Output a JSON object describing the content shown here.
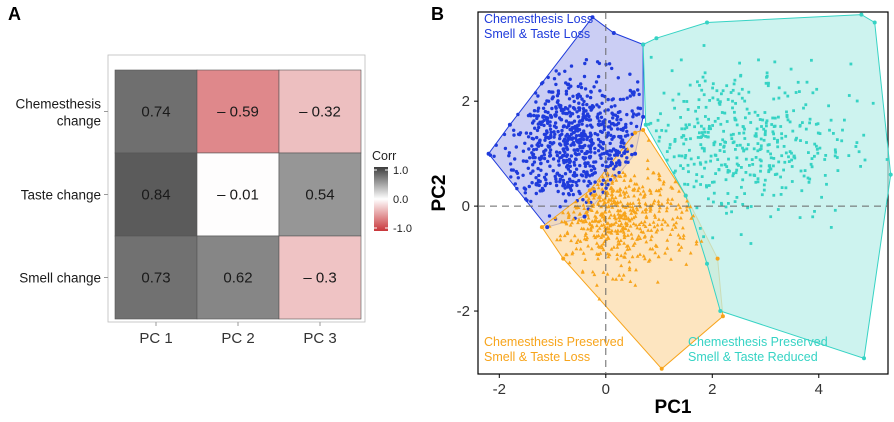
{
  "colors": {
    "loss": "#1f3bdb",
    "loss_fill": "#b9bef0",
    "reduced": "#36d3c4",
    "reduced_fill": "#bcefe9",
    "preserved_loss": "#f7a41b",
    "preserved_loss_fill": "#fcdcab",
    "heat_neg": "#c8363a",
    "heat_mid": "#ffffff",
    "heat_pos": "#3c3c3c"
  },
  "panel_a": {
    "letter": "A",
    "legend_title": "Corr",
    "legend_ticks": [
      "1.0",
      "0.0",
      "-1.0"
    ]
  },
  "panel_b": {
    "letter": "B"
  },
  "chart_data": [
    {
      "type": "heatmap",
      "rows": [
        "Chemesthesis change",
        "Taste change",
        "Smell change"
      ],
      "row_label_lines": [
        [
          "Chemesthesis",
          "change"
        ],
        [
          "Taste change"
        ],
        [
          "Smell change"
        ]
      ],
      "columns": [
        "PC 1",
        "PC 2",
        "PC 3"
      ],
      "values": [
        [
          0.74,
          -0.59,
          -0.32
        ],
        [
          0.84,
          -0.01,
          0.54
        ],
        [
          0.73,
          0.62,
          -0.3
        ]
      ],
      "labels": [
        [
          "0.74",
          "– 0.59",
          "– 0.32"
        ],
        [
          "0.84",
          "– 0.01",
          "0.54"
        ],
        [
          "0.73",
          "0.62",
          "– 0.3"
        ]
      ],
      "color_scale": {
        "min": -1.0,
        "max": 1.0
      }
    },
    {
      "type": "scatter",
      "xlabel": "PC1",
      "ylabel": "PC2",
      "xlim": [
        -2.4,
        5.3
      ],
      "ylim": [
        -3.2,
        3.7
      ],
      "xticks": [
        -2,
        0,
        2,
        4
      ],
      "yticks": [
        -2,
        0,
        2
      ],
      "reference_lines": {
        "x": 0,
        "y": 0
      },
      "groups": [
        {
          "name_lines": [
            "Chemesthesis Loss",
            "Smell & Taste Loss"
          ],
          "color_key": "loss",
          "marker": "circle",
          "hull": [
            [
              -2.2,
              1.0
            ],
            [
              -1.8,
              1.55
            ],
            [
              -0.25,
              3.6
            ],
            [
              0.15,
              3.3
            ],
            [
              0.7,
              3.08
            ],
            [
              0.7,
              1.7
            ],
            [
              0.55,
              1.0
            ],
            [
              -0.4,
              -0.2
            ],
            [
              -1.1,
              -0.4
            ]
          ],
          "cluster": {
            "center": [
              -0.6,
              1.2
            ],
            "spread": [
              0.75,
              0.65
            ],
            "count": 700
          }
        },
        {
          "name_lines": [
            "Chemesthesis Preserved",
            "Smell & Taste Loss"
          ],
          "color_key": "preserved_loss",
          "marker": "triangle",
          "hull": [
            [
              -1.2,
              -0.4
            ],
            [
              -0.3,
              0.3
            ],
            [
              0.55,
              1.4
            ],
            [
              0.7,
              1.45
            ],
            [
              1.5,
              0.2
            ],
            [
              2.1,
              -1.0
            ],
            [
              2.2,
              -2.1
            ],
            [
              1.05,
              -3.1
            ],
            [
              -0.8,
              -1.0
            ]
          ],
          "cluster": {
            "center": [
              0.2,
              -0.2
            ],
            "spread": [
              0.7,
              0.5
            ],
            "count": 520
          }
        },
        {
          "name_lines": [
            "Chemesthesis Preserved",
            "Smell & Taste Reduced"
          ],
          "color_key": "reduced",
          "marker": "square",
          "hull": [
            [
              0.7,
              3.08
            ],
            [
              0.95,
              3.2
            ],
            [
              1.9,
              3.5
            ],
            [
              4.8,
              3.65
            ],
            [
              5.05,
              3.5
            ],
            [
              5.35,
              0.6
            ],
            [
              4.85,
              -2.9
            ],
            [
              2.15,
              -2.0
            ],
            [
              1.9,
              -1.1
            ],
            [
              1.5,
              0.2
            ],
            [
              0.75,
              1.55
            ]
          ],
          "cluster": {
            "center": [
              2.4,
              1.2
            ],
            "spread": [
              1.1,
              0.75
            ],
            "count": 430
          }
        }
      ]
    }
  ]
}
